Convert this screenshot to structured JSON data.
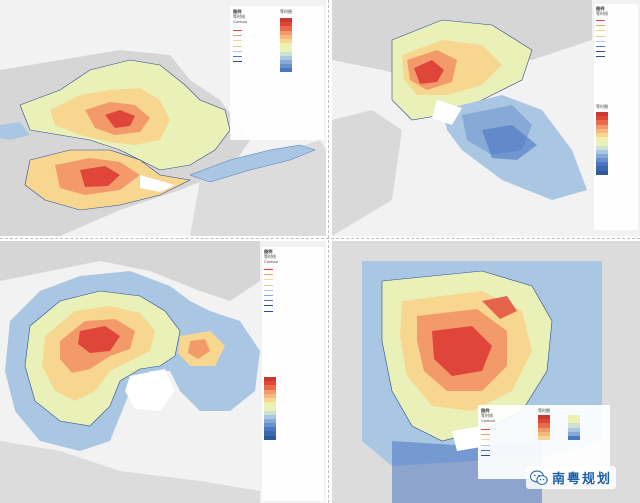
{
  "colors": {
    "hot": "#e0453a",
    "warm": "#f39a6b",
    "mid": "#f7d78f",
    "light": "#e9f0b8",
    "cool": "#a9c6e2",
    "cold": "#4b77c2",
    "land": "#d9d9d9",
    "water": "#ffffff",
    "contour": "#2e4d8f"
  },
  "panels": [
    {
      "id": "new-york",
      "legend_title": "图例",
      "legend_sub": "等时线",
      "legend_sub2": "Contour",
      "legend_heat": "等时圈"
    },
    {
      "id": "san-francisco",
      "legend_title": "图例",
      "legend_sub": "等时线",
      "legend_heat": "等时圈"
    },
    {
      "id": "tokyo",
      "legend_title": "图例",
      "legend_sub": "等时线",
      "legend_sub2": "Contour"
    },
    {
      "id": "greater-bay-area",
      "legend_title": "图例",
      "legend_sub": "等时线",
      "legend_sub2": "Contour",
      "legend_heat": "等时圈"
    }
  ],
  "watermark": {
    "text": "南粤规划",
    "icon": "wechat-icon"
  }
}
